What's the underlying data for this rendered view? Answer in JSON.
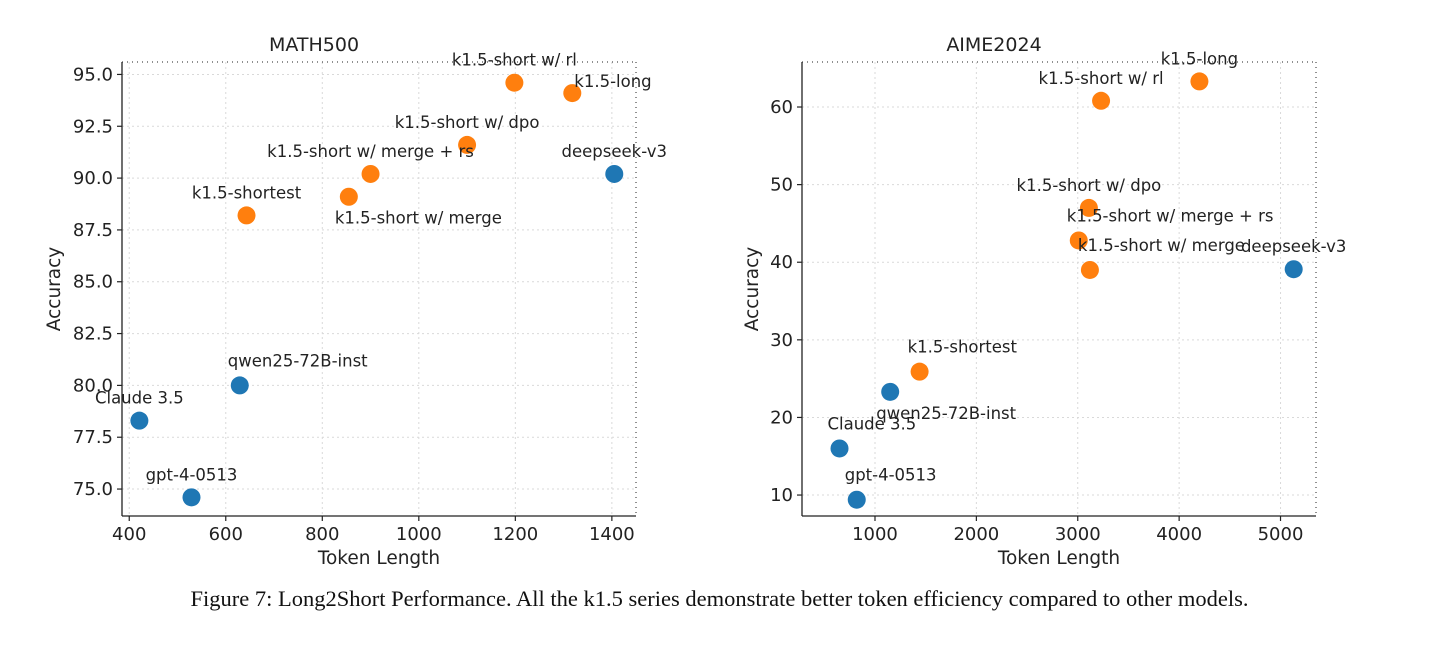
{
  "colors": {
    "blue": "#1f77b4",
    "orange": "#ff7f0e",
    "text": "#222222",
    "axis": "#222222",
    "grid": "#d9d9d9"
  },
  "caption": "Figure 7: Long2Short Performance. All the k1.5 series demonstrate better token efficiency compared to other models.",
  "chart_data": [
    {
      "type": "scatter",
      "title": "MATH500",
      "xlabel": "Token Length",
      "ylabel": "Accuracy",
      "xlim": [
        385,
        1450
      ],
      "ylim": [
        73.7,
        95.6
      ],
      "xticks": [
        400,
        600,
        800,
        1000,
        1200,
        1400
      ],
      "yticks": [
        75.0,
        77.5,
        80.0,
        82.5,
        85.0,
        87.5,
        90.0,
        92.5,
        95.0
      ],
      "ytick_labels": [
        "75.0",
        "77.5",
        "80.0",
        "82.5",
        "85.0",
        "87.5",
        "90.0",
        "92.5",
        "95.0"
      ],
      "grid": true,
      "points": [
        {
          "label": "k1.5-short w/ rl",
          "x": 1198,
          "y": 94.6,
          "series": "k1.5",
          "label_pos": "above"
        },
        {
          "label": "k1.5-long",
          "x": 1318,
          "y": 94.1,
          "series": "k1.5",
          "label_pos": "right"
        },
        {
          "label": "k1.5-short w/ dpo",
          "x": 1100,
          "y": 91.6,
          "series": "k1.5",
          "label_pos": "above"
        },
        {
          "label": "k1.5-short w/ merge + rs",
          "x": 900,
          "y": 90.2,
          "series": "k1.5",
          "label_pos": "above"
        },
        {
          "label": "k1.5-short w/ merge",
          "x": 855,
          "y": 89.1,
          "series": "k1.5",
          "label_pos": "below-right"
        },
        {
          "label": "k1.5-shortest",
          "x": 643,
          "y": 88.2,
          "series": "k1.5",
          "label_pos": "above"
        },
        {
          "label": "deepseek-v3",
          "x": 1405,
          "y": 90.2,
          "series": "other",
          "label_pos": "above"
        },
        {
          "label": "qwen25-72B-inst",
          "x": 629,
          "y": 80.0,
          "series": "other",
          "label_pos": "above-right"
        },
        {
          "label": "Claude 3.5",
          "x": 421,
          "y": 78.3,
          "series": "other",
          "label_pos": "above"
        },
        {
          "label": "gpt-4-0513",
          "x": 529,
          "y": 74.6,
          "series": "other",
          "label_pos": "above"
        }
      ]
    },
    {
      "type": "scatter",
      "title": "AIME2024",
      "xlabel": "Token Length",
      "ylabel": "Accuracy",
      "xlim": [
        280,
        5350
      ],
      "ylim": [
        7.3,
        65.8
      ],
      "xticks": [
        1000,
        2000,
        3000,
        4000,
        5000
      ],
      "yticks": [
        10,
        20,
        30,
        40,
        50,
        60
      ],
      "ytick_labels": [
        "10",
        "20",
        "30",
        "40",
        "50",
        "60"
      ],
      "grid": true,
      "points": [
        {
          "label": "k1.5-long",
          "x": 4200,
          "y": 63.3,
          "series": "k1.5",
          "label_pos": "above"
        },
        {
          "label": "k1.5-short w/ rl",
          "x": 3230,
          "y": 60.8,
          "series": "k1.5",
          "label_pos": "above"
        },
        {
          "label": "k1.5-short w/ dpo",
          "x": 3110,
          "y": 47.0,
          "series": "k1.5",
          "label_pos": "above"
        },
        {
          "label": "k1.5-short w/ merge + rs",
          "x": 3010,
          "y": 42.8,
          "series": "k1.5",
          "label_pos": "above-right"
        },
        {
          "label": "k1.5-short w/ merge",
          "x": 3120,
          "y": 39.0,
          "series": "k1.5",
          "label_pos": "above-right"
        },
        {
          "label": "k1.5-shortest",
          "x": 1440,
          "y": 25.9,
          "series": "k1.5",
          "label_pos": "above-right"
        },
        {
          "label": "deepseek-v3",
          "x": 5130,
          "y": 39.1,
          "series": "other",
          "label_pos": "above"
        },
        {
          "label": "qwen25-72B-inst",
          "x": 1150,
          "y": 23.3,
          "series": "other",
          "label_pos": "below-right"
        },
        {
          "label": "Claude 3.5",
          "x": 650,
          "y": 16.0,
          "series": "other",
          "label_pos": "above-right"
        },
        {
          "label": "gpt-4-0513",
          "x": 820,
          "y": 9.4,
          "series": "other",
          "label_pos": "above-right"
        }
      ]
    }
  ]
}
